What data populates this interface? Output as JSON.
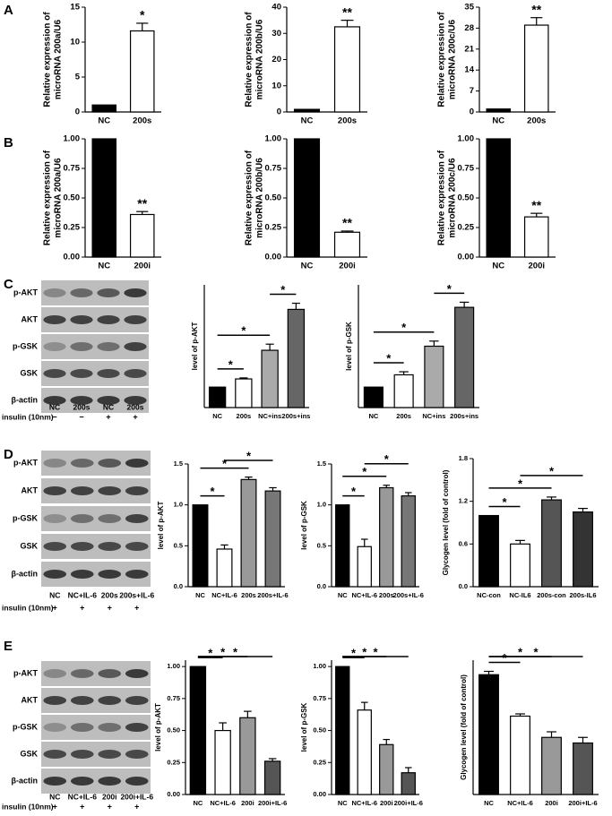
{
  "panel_letters": [
    "A",
    "B",
    "C",
    "D",
    "E"
  ],
  "blots": [
    {
      "rows": [
        "p-AKT",
        "AKT",
        "p-GSK",
        "GSK",
        "β-actin"
      ],
      "lanes": [
        "NC",
        "200s",
        "NC",
        "200s"
      ],
      "insulin_label": "insulin (10nm)",
      "insulin": [
        "−",
        "−",
        "+",
        "+"
      ]
    },
    {
      "rows": [
        "p-AKT",
        "AKT",
        "p-GSK",
        "GSK",
        "β-actin"
      ],
      "lanes": [
        "NC",
        "NC+IL-6",
        "200s",
        "200s+IL-6"
      ],
      "insulin_label": "insulin (10nm)",
      "insulin": [
        "+",
        "+",
        "+",
        "+"
      ]
    },
    {
      "rows": [
        "p-AKT",
        "AKT",
        "p-GSK",
        "GSK",
        "β-actin"
      ],
      "lanes": [
        "NC",
        "NC+IL-6",
        "200i",
        "200i+IL-6"
      ],
      "insulin_label": "insulin (10nm)",
      "insulin": [
        "+",
        "+",
        "+",
        "+"
      ]
    }
  ],
  "chart_data": [
    {
      "type": "bar",
      "ylabel": [
        "Relative expression of",
        "microRNA 200a/U6"
      ],
      "categories": [
        "NC",
        "200s"
      ],
      "values": [
        1,
        11.6
      ],
      "errors": [
        0,
        1.1
      ],
      "colors": [
        "#000000",
        "#ffffff"
      ],
      "ylim": [
        0,
        15
      ],
      "yticks": [
        0,
        5,
        10,
        15
      ],
      "annotations": [
        "*"
      ]
    },
    {
      "type": "bar",
      "ylabel": [
        "Relative expression of",
        "microRNA 200b/U6"
      ],
      "categories": [
        "NC",
        "200s"
      ],
      "values": [
        1,
        32.5
      ],
      "errors": [
        0,
        2.5
      ],
      "colors": [
        "#000000",
        "#ffffff"
      ],
      "ylim": [
        0,
        40
      ],
      "yticks": [
        0,
        10,
        20,
        30,
        40
      ],
      "annotations": [
        "**"
      ]
    },
    {
      "type": "bar",
      "ylabel": [
        "Relative expression of",
        "microRNA 200c/U6"
      ],
      "categories": [
        "NC",
        "200s"
      ],
      "values": [
        1,
        29
      ],
      "errors": [
        0,
        2.5
      ],
      "colors": [
        "#000000",
        "#ffffff"
      ],
      "ylim": [
        0,
        35
      ],
      "yticks": [
        0,
        7,
        14,
        21,
        28,
        35
      ],
      "annotations": [
        "**"
      ]
    },
    {
      "type": "bar",
      "ylabel": [
        "Relative expression of",
        "microRNA 200a/U6"
      ],
      "categories": [
        "NC",
        "200i"
      ],
      "values": [
        1,
        0.36
      ],
      "errors": [
        0,
        0.025
      ],
      "colors": [
        "#000000",
        "#ffffff"
      ],
      "ylim": [
        0,
        1
      ],
      "yticks": [
        {
          "value": 0,
          "label": "0.00"
        },
        {
          "value": 0.25,
          "label": "0.25"
        },
        {
          "value": 0.5,
          "label": "0.50"
        },
        {
          "value": 0.75,
          "label": "0.75"
        },
        {
          "value": 1,
          "label": "1.00"
        }
      ],
      "annotations": [
        "**"
      ]
    },
    {
      "type": "bar",
      "ylabel": [
        "Relative expression of",
        "microRNA 200b/U6"
      ],
      "categories": [
        "NC",
        "200i"
      ],
      "values": [
        1,
        0.21
      ],
      "errors": [
        0,
        0.01
      ],
      "colors": [
        "#000000",
        "#ffffff"
      ],
      "ylim": [
        0,
        1
      ],
      "yticks": [
        {
          "value": 0,
          "label": "0.00"
        },
        {
          "value": 0.25,
          "label": "0.25"
        },
        {
          "value": 0.5,
          "label": "0.50"
        },
        {
          "value": 0.75,
          "label": "0.75"
        },
        {
          "value": 1,
          "label": "1.00"
        }
      ],
      "annotations": [
        "**"
      ]
    },
    {
      "type": "bar",
      "ylabel": [
        "Relative expression of",
        "microRNA 200c/U6"
      ],
      "categories": [
        "NC",
        "200i"
      ],
      "values": [
        1,
        0.34
      ],
      "errors": [
        0,
        0.03
      ],
      "colors": [
        "#000000",
        "#ffffff"
      ],
      "ylim": [
        0,
        1
      ],
      "yticks": [
        {
          "value": 0,
          "label": "0.00"
        },
        {
          "value": 0.25,
          "label": "0.25"
        },
        {
          "value": 0.5,
          "label": "0.50"
        },
        {
          "value": 0.75,
          "label": "0.75"
        },
        {
          "value": 1,
          "label": "1.00"
        }
      ],
      "annotations": [
        "**"
      ]
    },
    {
      "type": "bar",
      "ylabel": [
        "level of p-AKT"
      ],
      "categories": [
        "NC",
        "200s",
        "NC+ins",
        "200s+ins"
      ],
      "values": [
        1,
        1.4,
        2.8,
        4.8
      ],
      "errors": [
        0,
        0.05,
        0.3,
        0.3
      ],
      "colors": [
        "#000000",
        "#ffffff",
        "#aaaaaa",
        "#666666"
      ],
      "ylim": [
        0,
        6
      ],
      "yticks": [],
      "annotations": [
        "*",
        "*",
        "*"
      ]
    },
    {
      "type": "bar",
      "ylabel": [
        "level of p-GSK"
      ],
      "categories": [
        "NC",
        "200s",
        "NC+ins",
        "200s+ins"
      ],
      "values": [
        1,
        1.6,
        3.0,
        4.9
      ],
      "errors": [
        0,
        0.15,
        0.25,
        0.25
      ],
      "colors": [
        "#000000",
        "#ffffff",
        "#aaaaaa",
        "#666666"
      ],
      "ylim": [
        0,
        6
      ],
      "yticks": [],
      "annotations": [
        "*",
        "*",
        "*"
      ]
    },
    {
      "type": "bar",
      "ylabel": [
        "level of p-AKT"
      ],
      "categories": [
        "NC",
        "NC+IL-6",
        "200s",
        "200s+IL-6"
      ],
      "values": [
        1.0,
        0.46,
        1.31,
        1.17
      ],
      "errors": [
        0,
        0.05,
        0.03,
        0.04
      ],
      "colors": [
        "#000000",
        "#ffffff",
        "#999999",
        "#777777"
      ],
      "ylim": [
        0,
        1.5
      ],
      "yticks": [
        {
          "value": 0,
          "label": "0.0"
        },
        0.5,
        {
          "value": 1,
          "label": "1.0"
        },
        1.5
      ],
      "annotations": [
        "*",
        "*",
        "*"
      ]
    },
    {
      "type": "bar",
      "ylabel": [
        "level of p-GSK"
      ],
      "categories": [
        "NC",
        "NC+IL-6",
        "200s",
        "200s+IL-6"
      ],
      "values": [
        1.0,
        0.49,
        1.21,
        1.11
      ],
      "errors": [
        0,
        0.09,
        0.03,
        0.04
      ],
      "colors": [
        "#000000",
        "#ffffff",
        "#999999",
        "#777777"
      ],
      "ylim": [
        0,
        1.5
      ],
      "yticks": [
        {
          "value": 0,
          "label": "0.0"
        },
        0.5,
        {
          "value": 1,
          "label": "1.0"
        },
        1.5
      ],
      "annotations": [
        "*",
        "*",
        "*"
      ]
    },
    {
      "type": "bar",
      "ylabel": [
        "Glycogen level (fold of control)"
      ],
      "categories": [
        "NC-con",
        "NC-IL6",
        "200s-con",
        "200s-IL6"
      ],
      "values": [
        1.0,
        0.6,
        1.22,
        1.05
      ],
      "errors": [
        0,
        0.05,
        0.04,
        0.05
      ],
      "colors": [
        "#000000",
        "#ffffff",
        "#555555",
        "#333333"
      ],
      "ylim": [
        0,
        1.8
      ],
      "yticks": [
        {
          "value": 0,
          "label": "0.0"
        },
        0.6,
        1.2,
        1.8
      ],
      "annotations": [
        "*",
        "*",
        "*"
      ]
    },
    {
      "type": "bar",
      "ylabel": [
        "level of p-AKT"
      ],
      "categories": [
        "NC",
        "NC+IL-6",
        "200i",
        "200i+IL-6"
      ],
      "values": [
        1.0,
        0.5,
        0.6,
        0.26
      ],
      "errors": [
        0,
        0.06,
        0.05,
        0.02
      ],
      "colors": [
        "#000000",
        "#ffffff",
        "#999999",
        "#555555"
      ],
      "ylim": [
        0,
        1.05
      ],
      "yticks": [
        {
          "value": 0,
          "label": "0.00"
        },
        {
          "value": 0.25,
          "label": "0.25"
        },
        {
          "value": 0.5,
          "label": "0.50"
        },
        {
          "value": 0.75,
          "label": "0.75"
        },
        {
          "value": 1,
          "label": "1.00"
        }
      ],
      "annotations": [
        "*",
        "*",
        "*"
      ]
    },
    {
      "type": "bar",
      "ylabel": [
        "level of p-GSK"
      ],
      "categories": [
        "NC",
        "NC+IL-6",
        "200i",
        "200i+IL-6"
      ],
      "values": [
        1.0,
        0.66,
        0.39,
        0.17
      ],
      "errors": [
        0,
        0.06,
        0.04,
        0.04
      ],
      "colors": [
        "#000000",
        "#ffffff",
        "#999999",
        "#555555"
      ],
      "ylim": [
        0,
        1.05
      ],
      "yticks": [
        {
          "value": 0,
          "label": "0.00"
        },
        {
          "value": 0.25,
          "label": "0.25"
        },
        {
          "value": 0.5,
          "label": "0.50"
        },
        {
          "value": 0.75,
          "label": "0.75"
        },
        {
          "value": 1,
          "label": "1.00"
        }
      ],
      "annotations": [
        "*",
        "*",
        "*"
      ]
    },
    {
      "type": "bar",
      "ylabel": [
        "Glycogen level (fold of control)"
      ],
      "categories": [
        "NC",
        "NC+IL-6",
        "200i",
        "200i+IL-6"
      ],
      "values": [
        1.07,
        0.7,
        0.51,
        0.46
      ],
      "errors": [
        0.03,
        0.02,
        0.05,
        0.05
      ],
      "colors": [
        "#000000",
        "#ffffff",
        "#999999",
        "#555555"
      ],
      "ylim": [
        0,
        1.2
      ],
      "yticks": [],
      "annotations": [
        "*",
        "*",
        "*"
      ]
    }
  ]
}
